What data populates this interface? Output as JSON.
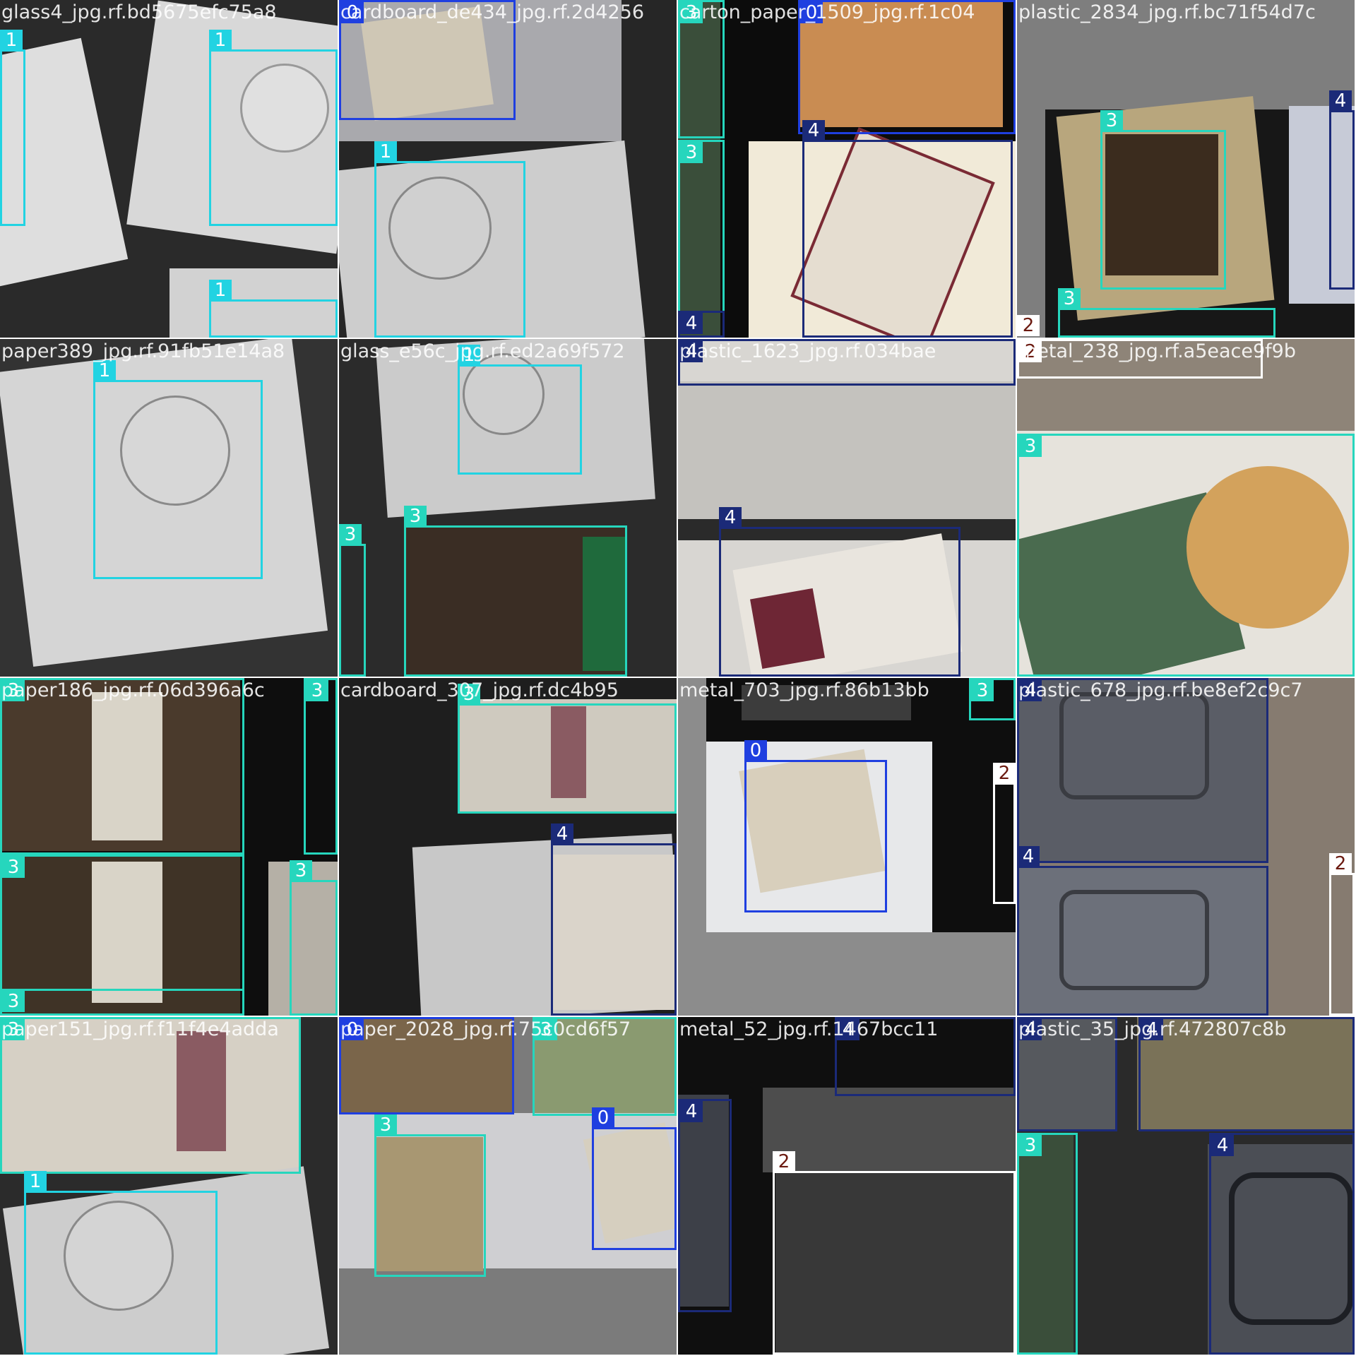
{
  "classes": {
    "0": {
      "label": "0",
      "color": "#1f3fe0",
      "text_color": "#ffffff"
    },
    "1": {
      "label": "1",
      "color": "#22d3e2",
      "text_color": "#ffffff"
    },
    "2": {
      "label": "2",
      "color": "#ffffff",
      "text_color": "#6b1a10"
    },
    "3": {
      "label": "3",
      "color": "#26d6bd",
      "text_color": "#ffffff"
    },
    "4": {
      "label": "4",
      "color": "#1b2a78",
      "text_color": "#ffffff"
    }
  },
  "tiles": [
    {
      "filename": "glass4_jpg.rf.bd5675efc75a8",
      "scene": "glass",
      "boxes": [
        {
          "cls": "1"
        },
        {
          "cls": "1"
        },
        {
          "cls": "1"
        }
      ]
    },
    {
      "filename": "cardboard_de434_jpg.rf.2d4256",
      "scene": "glass-paper",
      "boxes": [
        {
          "cls": "0"
        },
        {
          "cls": "1"
        }
      ]
    },
    {
      "filename": "carton_paper_1509_jpg.rf.1c04",
      "scene": "bag-cardboard",
      "boxes": [
        {
          "cls": "3"
        },
        {
          "cls": "3"
        },
        {
          "cls": "0"
        },
        {
          "cls": "4"
        },
        {
          "cls": "4"
        }
      ]
    },
    {
      "filename": "plastic_2834_jpg.rf.bc71f54d7c",
      "scene": "flyer",
      "boxes": [
        {
          "cls": "3"
        },
        {
          "cls": "4"
        },
        {
          "cls": "3"
        },
        {
          "cls": "2"
        }
      ]
    },
    {
      "filename": "paper389_jpg.rf.91fb51e14a8",
      "scene": "glass",
      "boxes": [
        {
          "cls": "1"
        }
      ]
    },
    {
      "filename": "glass_e56c_jpg.rf.ed2a69f572",
      "scene": "glass-flyer",
      "boxes": [
        {
          "cls": "1"
        },
        {
          "cls": "3"
        },
        {
          "cls": "3"
        }
      ]
    },
    {
      "filename": "plastic_1623_jpg.rf.034bae",
      "scene": "wrapper",
      "boxes": [
        {
          "cls": "4"
        },
        {
          "cls": "4"
        }
      ]
    },
    {
      "filename": "metal_238_jpg.rf.a5eace9f9b",
      "scene": "pizza-flyer",
      "boxes": [
        {
          "cls": "2"
        },
        {
          "cls": "3"
        }
      ]
    },
    {
      "filename": "paper186_jpg.rf.06d396a6c",
      "scene": "flyers",
      "boxes": [
        {
          "cls": "3"
        },
        {
          "cls": "3"
        },
        {
          "cls": "3"
        },
        {
          "cls": "3"
        },
        {
          "cls": "3"
        }
      ]
    },
    {
      "filename": "cardboard_307_jpg.rf.dc4b95",
      "scene": "flyer-wrapper",
      "boxes": [
        {
          "cls": "3"
        },
        {
          "cls": "4"
        }
      ]
    },
    {
      "filename": "metal_703_jpg.rf.86b13bb",
      "scene": "newspaper",
      "boxes": [
        {
          "cls": "0"
        },
        {
          "cls": "2"
        },
        {
          "cls": "3"
        }
      ]
    },
    {
      "filename": "plastic_678_jpg.rf.be8ef2c9c7",
      "scene": "containers",
      "boxes": [
        {
          "cls": "4"
        },
        {
          "cls": "4"
        },
        {
          "cls": "2"
        }
      ]
    },
    {
      "filename": "paper151_jpg.rf.f11f4e4adda",
      "scene": "flyer-glass",
      "boxes": [
        {
          "cls": "3"
        },
        {
          "cls": "1"
        }
      ]
    },
    {
      "filename": "paper_2028_jpg.rf.75c0cd6f57",
      "scene": "mixed",
      "boxes": [
        {
          "cls": "0"
        },
        {
          "cls": "3"
        },
        {
          "cls": "3"
        },
        {
          "cls": "0"
        }
      ]
    },
    {
      "filename": "metal_52_jpg.rf.1467bcc11",
      "scene": "foil",
      "boxes": [
        {
          "cls": "4"
        },
        {
          "cls": "4"
        },
        {
          "cls": "2"
        }
      ]
    },
    {
      "filename": "plastic_35_jpg.rf.472807c8b",
      "scene": "container-closeup",
      "boxes": [
        {
          "cls": "4"
        },
        {
          "cls": "4"
        },
        {
          "cls": "3"
        },
        {
          "cls": "4"
        }
      ]
    }
  ]
}
